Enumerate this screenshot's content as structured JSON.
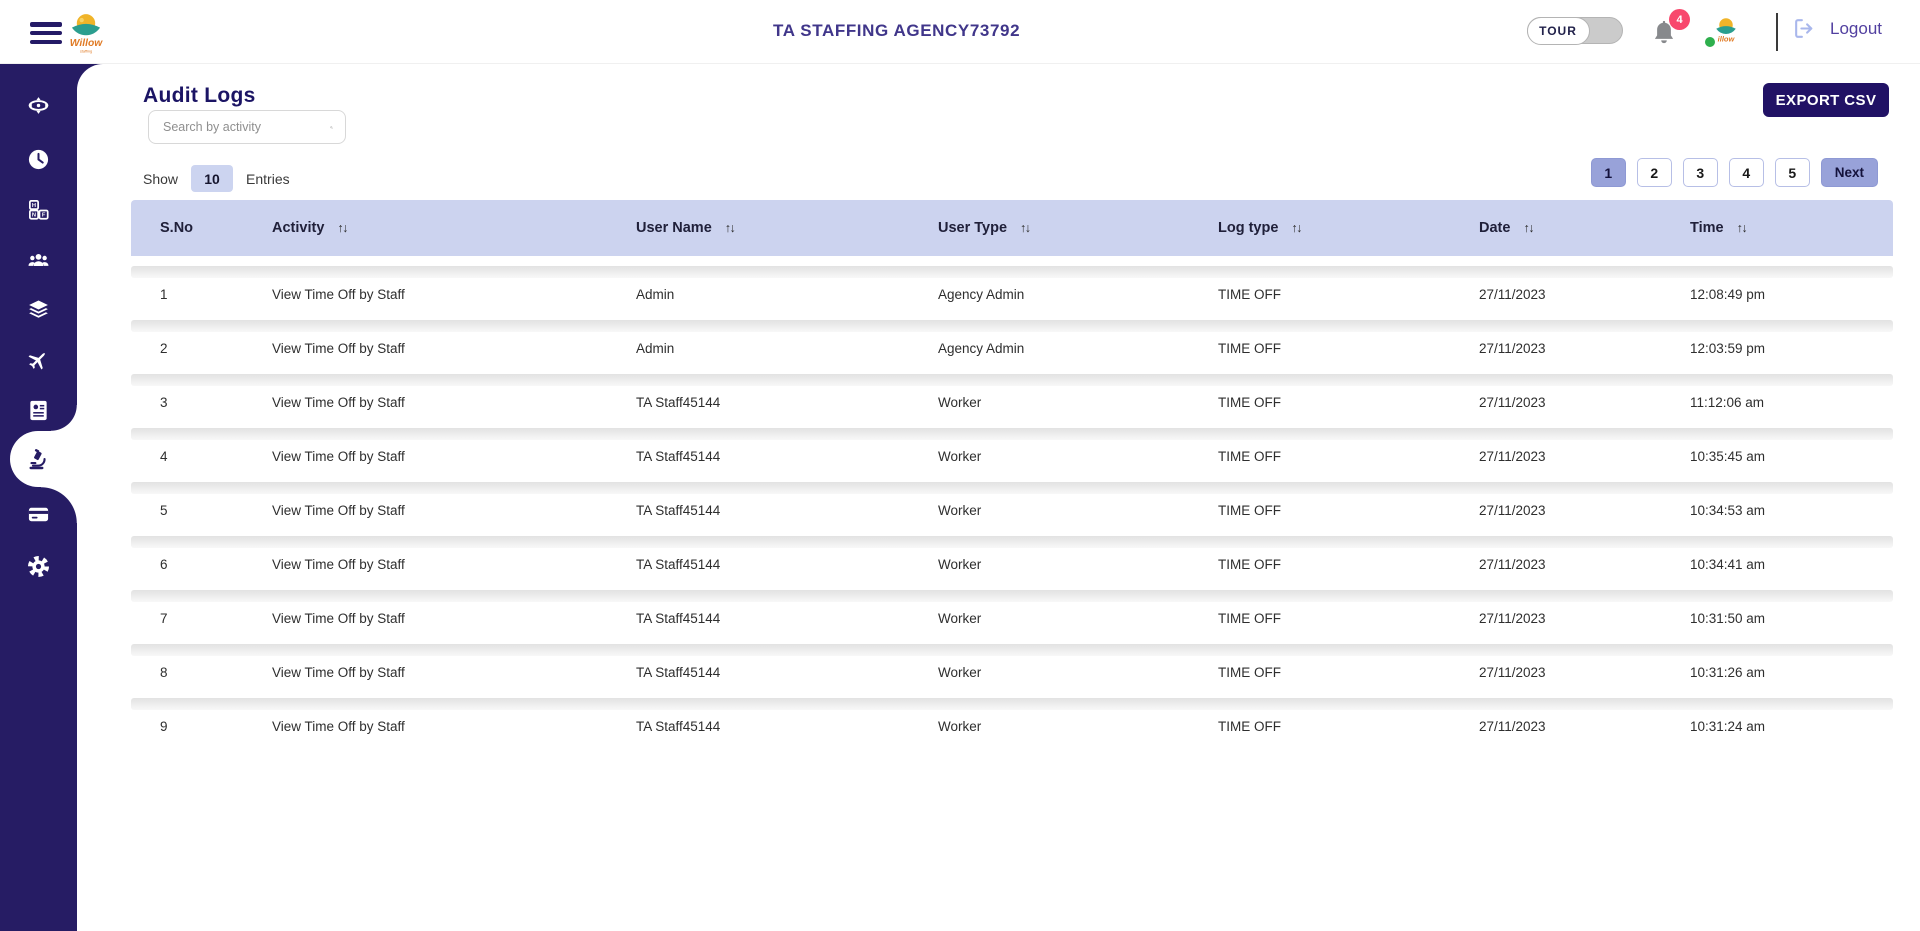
{
  "header": {
    "title": "TA STAFFING AGENCY73792",
    "brand_name": "Willow",
    "tour_label": "TOUR",
    "notification_count": "4",
    "logout_label": "Logout"
  },
  "sidebar": {
    "items": [
      {
        "icon": "scheduler-icon",
        "active": false
      },
      {
        "icon": "time-clock-icon",
        "active": false
      },
      {
        "icon": "shift-blocks-icon",
        "active": false
      },
      {
        "icon": "staff-group-icon",
        "active": false
      },
      {
        "icon": "layers-icon",
        "active": false
      },
      {
        "icon": "travel-plane-icon",
        "active": false
      },
      {
        "icon": "journal-icon",
        "active": false
      },
      {
        "icon": "audit-logs-microscope-icon",
        "active": true
      },
      {
        "icon": "billing-card-icon",
        "active": false
      },
      {
        "icon": "settings-gear-icon",
        "active": false
      }
    ]
  },
  "page": {
    "title": "Audit Logs",
    "search_placeholder": "Search by activity",
    "export_button": "EXPORT CSV",
    "show_label": "Show",
    "entries_value": "10",
    "entries_label": "Entries"
  },
  "pagination": {
    "pages": [
      "1",
      "2",
      "3",
      "4",
      "5"
    ],
    "active": "1",
    "next_label": "Next"
  },
  "table": {
    "columns": [
      {
        "label": "S.No",
        "sortable": false
      },
      {
        "label": "Activity",
        "sortable": true
      },
      {
        "label": "User Name",
        "sortable": true
      },
      {
        "label": "User Type",
        "sortable": true
      },
      {
        "label": "Log type",
        "sortable": true
      },
      {
        "label": "Date",
        "sortable": true
      },
      {
        "label": "Time",
        "sortable": true
      }
    ],
    "rows": [
      [
        "1",
        "View Time Off by Staff",
        "Admin",
        "Agency Admin",
        "TIME OFF",
        "27/11/2023",
        "12:08:49 pm"
      ],
      [
        "2",
        "View Time Off by Staff",
        "Admin",
        "Agency Admin",
        "TIME OFF",
        "27/11/2023",
        "12:03:59 pm"
      ],
      [
        "3",
        "View Time Off by Staff",
        "TA Staff45144",
        "Worker",
        "TIME OFF",
        "27/11/2023",
        "11:12:06 am"
      ],
      [
        "4",
        "View Time Off by Staff",
        "TA Staff45144",
        "Worker",
        "TIME OFF",
        "27/11/2023",
        "10:35:45 am"
      ],
      [
        "5",
        "View Time Off by Staff",
        "TA Staff45144",
        "Worker",
        "TIME OFF",
        "27/11/2023",
        "10:34:53 am"
      ],
      [
        "6",
        "View Time Off by Staff",
        "TA Staff45144",
        "Worker",
        "TIME OFF",
        "27/11/2023",
        "10:34:41 am"
      ],
      [
        "7",
        "View Time Off by Staff",
        "TA Staff45144",
        "Worker",
        "TIME OFF",
        "27/11/2023",
        "10:31:50 am"
      ],
      [
        "8",
        "View Time Off by Staff",
        "TA Staff45144",
        "Worker",
        "TIME OFF",
        "27/11/2023",
        "10:31:26 am"
      ],
      [
        "9",
        "View Time Off by Staff",
        "TA Staff45144",
        "Worker",
        "TIME OFF",
        "27/11/2023",
        "10:31:24 am"
      ]
    ]
  },
  "colors": {
    "sidebar_navy": "#261c64",
    "table_header_bg": "#ccd3ef",
    "accent_periwinkle": "#98a2d9",
    "export_button_bg": "#211265",
    "badge_pink": "#f8486d",
    "logout_purple": "#5240a0",
    "presence_green": "#2eaf4d"
  }
}
